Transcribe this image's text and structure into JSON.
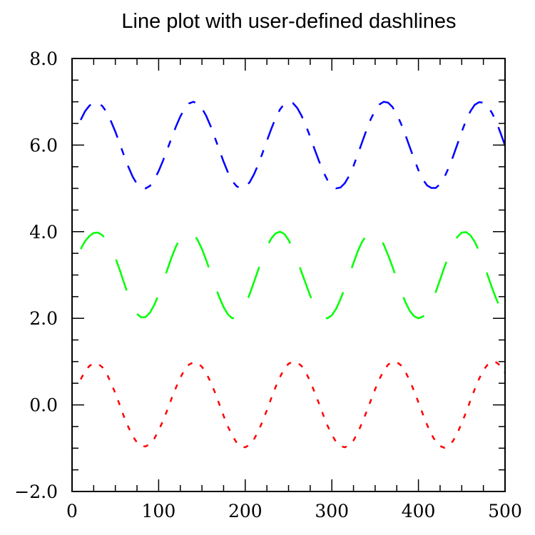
{
  "chart_data": {
    "type": "line",
    "title": "Line plot with user-defined dashlines",
    "xlabel": "",
    "ylabel": "",
    "xlim": [
      0,
      500
    ],
    "ylim": [
      -2.0,
      8.0
    ],
    "x_ticks": [
      0,
      100,
      200,
      300,
      400,
      500
    ],
    "x_tick_labels": [
      "0",
      "100",
      "200",
      "300",
      "400",
      "500"
    ],
    "y_ticks": [
      -2.0,
      0.0,
      2.0,
      4.0,
      6.0,
      8.0
    ],
    "y_tick_labels": [
      "−2.0",
      "0.0",
      "2.0",
      "4.0",
      "6.0",
      "8.0"
    ],
    "grid": false,
    "legend": "none",
    "series": [
      {
        "color": "#ff0000",
        "dash": "short",
        "x_start": 10,
        "x_end": 500,
        "x_step": 5,
        "y": [
          0.59,
          0.78,
          0.9,
          0.96,
          0.95,
          0.87,
          0.72,
          0.51,
          0.27,
          0.0,
          -0.27,
          -0.51,
          -0.72,
          -0.87,
          -0.95,
          -0.96,
          -0.9,
          -0.78,
          -0.59,
          -0.37,
          -0.12,
          0.15,
          0.4,
          0.63,
          0.81,
          0.93,
          0.98,
          0.97,
          0.88,
          0.73,
          0.53,
          0.29,
          0.02,
          -0.25,
          -0.5,
          -0.71,
          -0.87,
          -0.96,
          -0.98,
          -0.92,
          -0.8,
          -0.61,
          -0.38,
          -0.12,
          0.15,
          0.41,
          0.64,
          0.83,
          0.95,
          1.0,
          0.98,
          0.9,
          0.75,
          0.54,
          0.3,
          0.04,
          -0.23,
          -0.48,
          -0.69,
          -0.86,
          -0.95,
          -0.98,
          -0.93,
          -0.82,
          -0.64,
          -0.41,
          -0.16,
          0.1,
          0.36,
          0.6,
          0.79,
          0.93,
          1.0,
          0.99,
          0.91,
          0.76,
          0.56,
          0.32,
          0.06,
          -0.21,
          -0.46,
          -0.68,
          -0.85,
          -0.95,
          -0.99,
          -0.94,
          -0.83,
          -0.65,
          -0.42,
          -0.17,
          0.1,
          0.36,
          0.6,
          0.8,
          0.93,
          1.0,
          0.98,
          0.9,
          0.74
        ]
      },
      {
        "color": "#00ff00",
        "dash": "long",
        "x_start": 10,
        "x_end": 500,
        "x_step": 5,
        "y": [
          3.6,
          3.78,
          3.9,
          3.97,
          3.98,
          3.92,
          3.8,
          3.62,
          3.4,
          3.12,
          2.82,
          2.53,
          2.29,
          2.1,
          2.02,
          2.03,
          2.13,
          2.31,
          2.55,
          2.83,
          3.12,
          3.41,
          3.66,
          3.85,
          3.97,
          4.0,
          3.95,
          3.81,
          3.6,
          3.34,
          3.05,
          2.76,
          2.49,
          2.26,
          2.09,
          2.0,
          2.02,
          2.13,
          2.31,
          2.55,
          2.83,
          3.12,
          3.4,
          3.65,
          3.84,
          3.96,
          4.0,
          3.95,
          3.81,
          3.6,
          3.35,
          3.07,
          2.79,
          2.52,
          2.29,
          2.12,
          2.02,
          2.0,
          2.07,
          2.22,
          2.44,
          2.7,
          2.99,
          3.28,
          3.55,
          3.77,
          3.92,
          3.99,
          3.98,
          3.88,
          3.7,
          3.46,
          3.19,
          2.9,
          2.62,
          2.37,
          2.17,
          2.05,
          2.0,
          2.04,
          2.16,
          2.36,
          2.61,
          2.89,
          3.18,
          3.46,
          3.7,
          3.88,
          3.98,
          3.99,
          3.92,
          3.77,
          3.55,
          3.28,
          2.99,
          2.7,
          2.44,
          2.22,
          2.07
        ]
      },
      {
        "color": "#0000ff",
        "dash": "mixed",
        "x_start": 10,
        "x_end": 500,
        "x_step": 5,
        "y": [
          6.58,
          6.78,
          6.91,
          6.98,
          6.98,
          6.9,
          6.76,
          6.55,
          6.31,
          6.04,
          5.76,
          5.5,
          5.27,
          5.1,
          5.01,
          5.0,
          5.06,
          5.2,
          5.4,
          5.64,
          5.9,
          6.17,
          6.43,
          6.66,
          6.84,
          6.96,
          7.0,
          6.96,
          6.85,
          6.67,
          6.44,
          6.17,
          5.89,
          5.62,
          5.37,
          5.17,
          5.05,
          5.0,
          5.03,
          5.14,
          5.32,
          5.55,
          5.82,
          6.1,
          6.37,
          6.62,
          6.82,
          6.95,
          7.0,
          6.97,
          6.86,
          6.68,
          6.45,
          6.19,
          5.91,
          5.64,
          5.39,
          5.19,
          5.06,
          5.0,
          5.02,
          5.12,
          5.29,
          5.52,
          5.79,
          6.07,
          6.35,
          6.6,
          6.8,
          6.94,
          7.0,
          6.98,
          6.88,
          6.71,
          6.49,
          6.23,
          5.95,
          5.68,
          5.42,
          5.21,
          5.07,
          5.01,
          5.01,
          5.1,
          5.26,
          5.48,
          5.74,
          6.02,
          6.31,
          6.57,
          6.78,
          6.93,
          6.99,
          6.98,
          6.9,
          6.74,
          6.53,
          6.27,
          5.99
        ]
      }
    ]
  }
}
